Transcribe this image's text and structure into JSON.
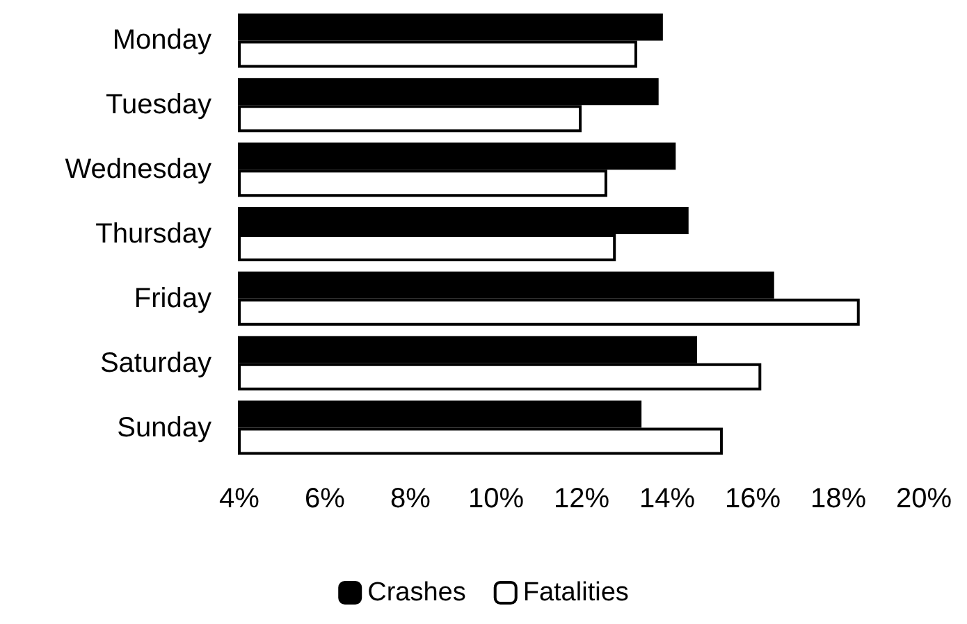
{
  "chart_data": {
    "type": "bar",
    "orientation": "horizontal",
    "categories": [
      "Monday",
      "Tuesday",
      "Wednesday",
      "Thursday",
      "Friday",
      "Saturday",
      "Sunday"
    ],
    "series": [
      {
        "name": "Crashes",
        "color": "#000000",
        "values": [
          13.9,
          13.8,
          14.2,
          14.5,
          16.5,
          14.7,
          13.4
        ]
      },
      {
        "name": "Fatalities",
        "color": "#ffffff",
        "values": [
          13.3,
          12.0,
          12.6,
          12.8,
          18.5,
          16.2,
          15.3
        ]
      }
    ],
    "xlim": [
      4,
      20
    ],
    "xticks": [
      {
        "value": 4,
        "label": "4%"
      },
      {
        "value": 6,
        "label": "6%"
      },
      {
        "value": 8,
        "label": "8%"
      },
      {
        "value": 10,
        "label": "10%"
      },
      {
        "value": 12,
        "label": "12%"
      },
      {
        "value": 14,
        "label": "14%"
      },
      {
        "value": 16,
        "label": "16%"
      },
      {
        "value": 18,
        "label": "18%"
      },
      {
        "value": 20,
        "label": "20%"
      }
    ],
    "grid": false,
    "legend": "bottom"
  }
}
